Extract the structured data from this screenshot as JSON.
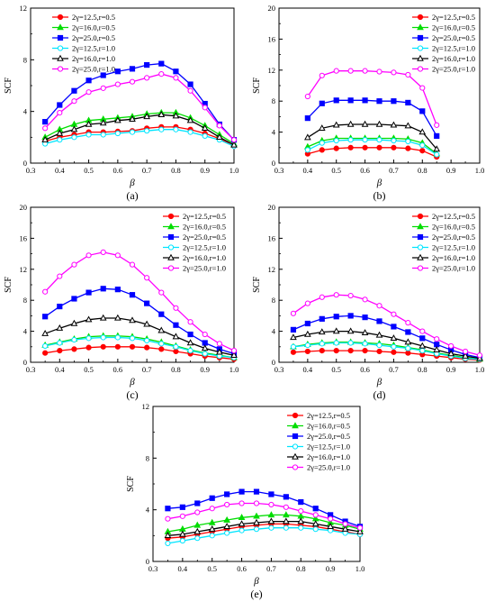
{
  "series_style": [
    {
      "color": "#ff0000",
      "marker": "circle-filled"
    },
    {
      "color": "#00dd00",
      "marker": "triangle-filled"
    },
    {
      "color": "#0000ff",
      "marker": "square-filled"
    },
    {
      "color": "#00e5ff",
      "marker": "circle-open"
    },
    {
      "color": "#000000",
      "marker": "triangle-open"
    },
    {
      "color": "#ff00ff",
      "marker": "circle-open"
    }
  ],
  "chart_data": [
    {
      "panel": "(a)",
      "type": "line",
      "xlabel": "β",
      "ylabel": "SCF",
      "xlim": [
        0.3,
        1.0
      ],
      "ylim": [
        0,
        12
      ],
      "xticks": [
        0.3,
        0.4,
        0.5,
        0.6,
        0.7,
        0.8,
        0.9,
        1.0
      ],
      "yticks": [
        0,
        4,
        8,
        12
      ],
      "legend": "top-left",
      "grid": false,
      "x": [
        0.35,
        0.4,
        0.45,
        0.5,
        0.55,
        0.6,
        0.65,
        0.7,
        0.75,
        0.8,
        0.85,
        0.9,
        0.95,
        1.0
      ],
      "series": [
        {
          "name": "2γ=12.5,r=0.5",
          "values": [
            1.7,
            2.0,
            2.2,
            2.4,
            2.4,
            2.45,
            2.5,
            2.7,
            2.8,
            2.8,
            2.6,
            2.3,
            1.9,
            1.3
          ]
        },
        {
          "name": "2γ=16.0,r=0.5",
          "values": [
            2.0,
            2.6,
            3.0,
            3.3,
            3.4,
            3.5,
            3.6,
            3.8,
            3.9,
            3.9,
            3.5,
            2.9,
            2.2,
            1.5
          ]
        },
        {
          "name": "2γ=25.0,r=0.5",
          "values": [
            3.2,
            4.5,
            5.6,
            6.4,
            6.8,
            7.1,
            7.3,
            7.6,
            7.7,
            7.1,
            6.1,
            4.6,
            3.0,
            1.8
          ]
        },
        {
          "name": "2γ=12.5,r=1.0",
          "values": [
            1.5,
            1.8,
            2.0,
            2.2,
            2.2,
            2.3,
            2.4,
            2.5,
            2.6,
            2.6,
            2.4,
            2.1,
            1.8,
            1.3
          ]
        },
        {
          "name": "2γ=16.0,r=1.0",
          "values": [
            1.8,
            2.3,
            2.6,
            3.0,
            3.1,
            3.3,
            3.4,
            3.6,
            3.75,
            3.65,
            3.3,
            2.7,
            2.0,
            1.4
          ]
        },
        {
          "name": "2γ=25.0,r=1.0",
          "values": [
            2.7,
            3.9,
            4.8,
            5.5,
            5.8,
            6.1,
            6.3,
            6.6,
            6.9,
            6.6,
            5.6,
            4.3,
            2.9,
            1.8
          ]
        }
      ]
    },
    {
      "panel": "(b)",
      "type": "line",
      "xlabel": "β",
      "ylabel": "SCF",
      "xlim": [
        0.3,
        1.0
      ],
      "ylim": [
        0,
        20
      ],
      "xticks": [
        0.3,
        0.4,
        0.5,
        0.6,
        0.7,
        0.8,
        0.9,
        1.0
      ],
      "yticks": [
        0,
        4,
        8,
        12,
        16,
        20
      ],
      "legend": "top-right",
      "grid": false,
      "x": [
        0.4,
        0.45,
        0.5,
        0.55,
        0.6,
        0.65,
        0.7,
        0.75,
        0.8,
        0.85
      ],
      "series": [
        {
          "name": "2γ=12.5,r=0.5",
          "values": [
            1.2,
            1.7,
            1.9,
            2.0,
            2.0,
            2.0,
            2.0,
            1.9,
            1.6,
            0.8
          ]
        },
        {
          "name": "2γ=16.0,r=0.5",
          "values": [
            2.1,
            2.9,
            3.2,
            3.2,
            3.2,
            3.2,
            3.2,
            3.1,
            2.6,
            1.2
          ]
        },
        {
          "name": "2γ=25.0,r=0.5",
          "values": [
            5.8,
            7.7,
            8.1,
            8.1,
            8.1,
            8.0,
            8.0,
            7.8,
            6.7,
            3.5
          ]
        },
        {
          "name": "2γ=12.5,r=1.0",
          "values": [
            1.7,
            2.6,
            2.9,
            3.0,
            3.0,
            3.0,
            2.9,
            2.8,
            2.3,
            1.1
          ]
        },
        {
          "name": "2γ=16.0,r=1.0",
          "values": [
            3.3,
            4.5,
            4.9,
            5.0,
            5.0,
            5.0,
            4.9,
            4.8,
            4.0,
            1.8
          ]
        },
        {
          "name": "2γ=25.0,r=1.0",
          "values": [
            8.6,
            11.3,
            11.9,
            11.9,
            11.9,
            11.8,
            11.7,
            11.4,
            9.7,
            4.9
          ]
        }
      ]
    },
    {
      "panel": "(c)",
      "type": "line",
      "xlabel": "β",
      "ylabel": "SCF",
      "xlim": [
        0.3,
        1.0
      ],
      "ylim": [
        0,
        20
      ],
      "xticks": [
        0.3,
        0.4,
        0.5,
        0.6,
        0.7,
        0.8,
        0.9,
        1.0
      ],
      "yticks": [
        0,
        4,
        8,
        12,
        16,
        20
      ],
      "legend": "top-right",
      "grid": false,
      "x": [
        0.35,
        0.4,
        0.45,
        0.5,
        0.55,
        0.6,
        0.65,
        0.7,
        0.75,
        0.8,
        0.85,
        0.9,
        0.95,
        1.0
      ],
      "series": [
        {
          "name": "2γ=12.5,r=0.5",
          "values": [
            1.2,
            1.5,
            1.7,
            1.9,
            2.0,
            2.0,
            2.0,
            1.9,
            1.7,
            1.4,
            1.1,
            0.8,
            0.6,
            0.4
          ]
        },
        {
          "name": "2γ=16.0,r=0.5",
          "values": [
            2.2,
            2.6,
            3.0,
            3.3,
            3.4,
            3.4,
            3.3,
            3.0,
            2.6,
            2.1,
            1.6,
            1.2,
            0.9,
            0.6
          ]
        },
        {
          "name": "2γ=25.0,r=0.5",
          "values": [
            5.9,
            7.2,
            8.2,
            9.0,
            9.5,
            9.4,
            8.7,
            7.6,
            6.2,
            4.8,
            3.6,
            2.5,
            1.7,
            1.1
          ]
        },
        {
          "name": "2γ=12.5,r=1.0",
          "values": [
            2.1,
            2.5,
            2.9,
            3.1,
            3.2,
            3.2,
            3.1,
            2.8,
            2.4,
            2.0,
            1.5,
            1.1,
            0.8,
            0.6
          ]
        },
        {
          "name": "2γ=16.0,r=1.0",
          "values": [
            3.7,
            4.4,
            5.0,
            5.5,
            5.7,
            5.7,
            5.4,
            4.9,
            4.1,
            3.3,
            2.5,
            1.8,
            1.3,
            0.9
          ]
        },
        {
          "name": "2γ=25.0,r=1.0",
          "values": [
            9.1,
            11.1,
            12.6,
            13.8,
            14.2,
            13.8,
            12.6,
            10.9,
            9.0,
            7.0,
            5.2,
            3.6,
            2.4,
            1.5
          ]
        }
      ]
    },
    {
      "panel": "(d)",
      "type": "line",
      "xlabel": "β",
      "ylabel": "SCF",
      "xlim": [
        0.3,
        1.0
      ],
      "ylim": [
        0,
        20
      ],
      "xticks": [
        0.3,
        0.4,
        0.5,
        0.6,
        0.7,
        0.8,
        0.9,
        1.0
      ],
      "yticks": [
        0,
        4,
        8,
        12,
        16,
        20
      ],
      "legend": "top-right",
      "grid": false,
      "x": [
        0.35,
        0.4,
        0.45,
        0.5,
        0.55,
        0.6,
        0.65,
        0.7,
        0.75,
        0.8,
        0.85,
        0.9,
        0.95,
        1.0
      ],
      "series": [
        {
          "name": "2γ=12.5,r=0.5",
          "values": [
            1.3,
            1.4,
            1.5,
            1.5,
            1.5,
            1.5,
            1.4,
            1.3,
            1.2,
            1.0,
            0.8,
            0.6,
            0.4,
            0.3
          ]
        },
        {
          "name": "2γ=16.0,r=0.5",
          "values": [
            2.0,
            2.3,
            2.5,
            2.6,
            2.6,
            2.5,
            2.4,
            2.2,
            1.9,
            1.6,
            1.2,
            0.9,
            0.6,
            0.4
          ]
        },
        {
          "name": "2γ=25.0,r=0.5",
          "values": [
            4.2,
            5.0,
            5.6,
            5.9,
            6.0,
            5.8,
            5.3,
            4.6,
            3.9,
            3.1,
            2.3,
            1.6,
            1.0,
            0.6
          ]
        },
        {
          "name": "2γ=12.5,r=1.0",
          "values": [
            2.0,
            2.2,
            2.4,
            2.5,
            2.5,
            2.4,
            2.2,
            2.0,
            1.8,
            1.5,
            1.1,
            0.8,
            0.5,
            0.4
          ]
        },
        {
          "name": "2γ=16.0,r=1.0",
          "values": [
            3.2,
            3.6,
            3.9,
            4.0,
            4.0,
            3.8,
            3.5,
            3.1,
            2.6,
            2.1,
            1.6,
            1.1,
            0.8,
            0.5
          ]
        },
        {
          "name": "2γ=25.0,r=1.0",
          "values": [
            6.3,
            7.6,
            8.4,
            8.7,
            8.6,
            8.1,
            7.3,
            6.2,
            5.1,
            4.0,
            3.0,
            2.1,
            1.4,
            0.9
          ]
        }
      ]
    },
    {
      "panel": "(e)",
      "type": "line",
      "xlabel": "β",
      "ylabel": "SCF",
      "xlim": [
        0.3,
        1.0
      ],
      "ylim": [
        0,
        12
      ],
      "xticks": [
        0.3,
        0.4,
        0.5,
        0.6,
        0.7,
        0.8,
        0.9,
        1.0
      ],
      "yticks": [
        0,
        4,
        8,
        12
      ],
      "legend": "top-right",
      "grid": false,
      "x": [
        0.35,
        0.4,
        0.45,
        0.5,
        0.55,
        0.6,
        0.65,
        0.7,
        0.75,
        0.8,
        0.85,
        0.9,
        0.95,
        1.0
      ],
      "series": [
        {
          "name": "2γ=12.5,r=0.5",
          "values": [
            1.8,
            1.9,
            2.1,
            2.3,
            2.5,
            2.7,
            2.8,
            2.9,
            2.9,
            2.8,
            2.7,
            2.5,
            2.3,
            2.1
          ]
        },
        {
          "name": "2γ=16.0,r=0.5",
          "values": [
            2.3,
            2.5,
            2.8,
            3.0,
            3.2,
            3.4,
            3.5,
            3.6,
            3.6,
            3.5,
            3.3,
            3.0,
            2.8,
            2.5
          ]
        },
        {
          "name": "2γ=25.0,r=0.5",
          "values": [
            4.1,
            4.2,
            4.5,
            4.9,
            5.2,
            5.4,
            5.4,
            5.2,
            5.0,
            4.6,
            4.1,
            3.6,
            3.1,
            2.7
          ]
        },
        {
          "name": "2γ=12.5,r=1.0",
          "values": [
            1.4,
            1.6,
            1.8,
            2.0,
            2.2,
            2.4,
            2.5,
            2.6,
            2.6,
            2.6,
            2.5,
            2.4,
            2.2,
            2.1
          ]
        },
        {
          "name": "2γ=16.0,r=1.0",
          "values": [
            2.0,
            2.1,
            2.3,
            2.5,
            2.7,
            2.9,
            3.0,
            3.1,
            3.1,
            3.1,
            2.9,
            2.7,
            2.5,
            2.3
          ]
        },
        {
          "name": "2γ=25.0,r=1.0",
          "values": [
            3.3,
            3.5,
            3.8,
            4.1,
            4.4,
            4.5,
            4.5,
            4.4,
            4.2,
            3.9,
            3.6,
            3.3,
            2.9,
            2.6
          ]
        }
      ]
    }
  ]
}
